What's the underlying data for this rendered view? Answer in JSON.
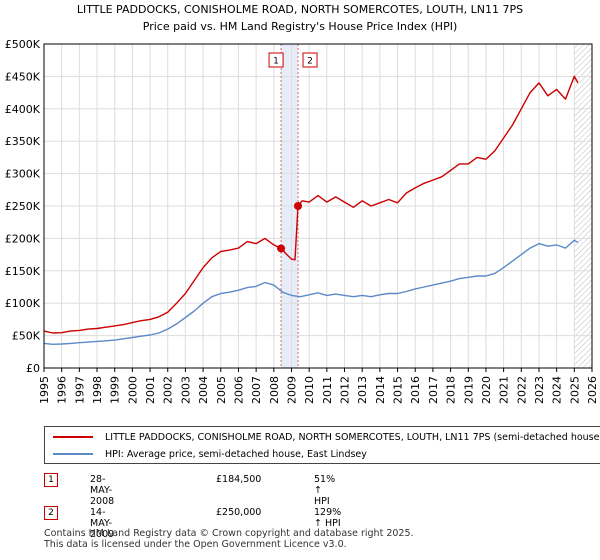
{
  "chart_data": {
    "type": "line",
    "title": "LITTLE PADDOCKS, CONISHOLME ROAD, NORTH SOMERCOTES, LOUTH, LN11 7PS",
    "subtitle": "Price paid vs. HM Land Registry's House Price Index (HPI)",
    "xlabel": "",
    "ylabel": "",
    "xlim": [
      1995,
      2026
    ],
    "ylim": [
      0,
      500000
    ],
    "x_ticks": [
      "1995",
      "1996",
      "1997",
      "1998",
      "1999",
      "2000",
      "2001",
      "2002",
      "2003",
      "2004",
      "2005",
      "2006",
      "2007",
      "2008",
      "2009",
      "2010",
      "2011",
      "2012",
      "2013",
      "2014",
      "2015",
      "2016",
      "2017",
      "2018",
      "2019",
      "2020",
      "2021",
      "2022",
      "2023",
      "2024",
      "2025",
      "2026"
    ],
    "y_ticks": [
      {
        "value": 0,
        "label": "£0"
      },
      {
        "value": 50000,
        "label": "£50K"
      },
      {
        "value": 100000,
        "label": "£100K"
      },
      {
        "value": 150000,
        "label": "£150K"
      },
      {
        "value": 200000,
        "label": "£200K"
      },
      {
        "value": 250000,
        "label": "£250K"
      },
      {
        "value": 300000,
        "label": "£300K"
      },
      {
        "value": 350000,
        "label": "£350K"
      },
      {
        "value": 400000,
        "label": "£400K"
      },
      {
        "value": 450000,
        "label": "£450K"
      },
      {
        "value": 500000,
        "label": "£500K"
      }
    ],
    "series": [
      {
        "name": "LITTLE PADDOCKS, CONISHOLME ROAD, NORTH SOMERCOTES, LOUTH, LN11 7PS (semi-detached house)",
        "color": "#cc0000",
        "points": [
          [
            1995.0,
            57000
          ],
          [
            1995.5,
            54000
          ],
          [
            1996.0,
            54500
          ],
          [
            1996.5,
            57000
          ],
          [
            1997.0,
            58000
          ],
          [
            1997.5,
            60000
          ],
          [
            1998.0,
            61000
          ],
          [
            1998.5,
            63000
          ],
          [
            1999.0,
            65000
          ],
          [
            1999.5,
            67000
          ],
          [
            2000.0,
            70000
          ],
          [
            2000.5,
            73000
          ],
          [
            2001.0,
            75000
          ],
          [
            2001.5,
            79000
          ],
          [
            2002.0,
            86000
          ],
          [
            2002.5,
            100000
          ],
          [
            2003.0,
            115000
          ],
          [
            2003.5,
            135000
          ],
          [
            2004.0,
            155000
          ],
          [
            2004.5,
            170000
          ],
          [
            2005.0,
            180000
          ],
          [
            2005.5,
            182000
          ],
          [
            2006.0,
            185000
          ],
          [
            2006.5,
            195000
          ],
          [
            2007.0,
            192000
          ],
          [
            2007.5,
            200000
          ],
          [
            2008.0,
            190000
          ],
          [
            2008.41,
            184500
          ],
          [
            2008.7,
            176000
          ],
          [
            2009.0,
            168000
          ],
          [
            2009.2,
            167000
          ],
          [
            2009.37,
            250000
          ],
          [
            2009.6,
            258000
          ],
          [
            2010.0,
            256000
          ],
          [
            2010.5,
            266000
          ],
          [
            2011.0,
            256000
          ],
          [
            2011.5,
            264000
          ],
          [
            2012.0,
            256000
          ],
          [
            2012.5,
            248000
          ],
          [
            2013.0,
            258000
          ],
          [
            2013.5,
            250000
          ],
          [
            2014.0,
            255000
          ],
          [
            2014.5,
            260000
          ],
          [
            2015.0,
            255000
          ],
          [
            2015.5,
            270000
          ],
          [
            2016.0,
            278000
          ],
          [
            2016.5,
            285000
          ],
          [
            2017.0,
            290000
          ],
          [
            2017.5,
            295000
          ],
          [
            2018.0,
            305000
          ],
          [
            2018.5,
            315000
          ],
          [
            2019.0,
            315000
          ],
          [
            2019.5,
            325000
          ],
          [
            2020.0,
            322000
          ],
          [
            2020.5,
            335000
          ],
          [
            2021.0,
            355000
          ],
          [
            2021.5,
            375000
          ],
          [
            2022.0,
            400000
          ],
          [
            2022.5,
            425000
          ],
          [
            2023.0,
            440000
          ],
          [
            2023.5,
            420000
          ],
          [
            2024.0,
            430000
          ],
          [
            2024.5,
            415000
          ],
          [
            2025.0,
            450000
          ],
          [
            2025.2,
            440000
          ]
        ]
      },
      {
        "name": "HPI: Average price, semi-detached house, East Lindsey",
        "color": "#5b8ac9",
        "points": [
          [
            1995.0,
            38000
          ],
          [
            1995.5,
            36500
          ],
          [
            1996.0,
            37000
          ],
          [
            1996.5,
            38000
          ],
          [
            1997.0,
            39000
          ],
          [
            1997.5,
            40000
          ],
          [
            1998.0,
            41000
          ],
          [
            1998.5,
            42000
          ],
          [
            1999.0,
            43000
          ],
          [
            1999.5,
            45000
          ],
          [
            2000.0,
            47000
          ],
          [
            2000.5,
            49000
          ],
          [
            2001.0,
            51000
          ],
          [
            2001.5,
            54000
          ],
          [
            2002.0,
            60000
          ],
          [
            2002.5,
            68000
          ],
          [
            2003.0,
            78000
          ],
          [
            2003.5,
            88000
          ],
          [
            2004.0,
            100000
          ],
          [
            2004.5,
            110000
          ],
          [
            2005.0,
            115000
          ],
          [
            2005.5,
            117000
          ],
          [
            2006.0,
            120000
          ],
          [
            2006.5,
            124000
          ],
          [
            2007.0,
            126000
          ],
          [
            2007.5,
            132000
          ],
          [
            2008.0,
            128000
          ],
          [
            2008.5,
            117000
          ],
          [
            2009.0,
            112000
          ],
          [
            2009.5,
            110000
          ],
          [
            2010.0,
            113000
          ],
          [
            2010.5,
            116000
          ],
          [
            2011.0,
            112000
          ],
          [
            2011.5,
            114000
          ],
          [
            2012.0,
            112000
          ],
          [
            2012.5,
            110000
          ],
          [
            2013.0,
            112000
          ],
          [
            2013.5,
            110000
          ],
          [
            2014.0,
            113000
          ],
          [
            2014.5,
            115000
          ],
          [
            2015.0,
            115000
          ],
          [
            2015.5,
            118000
          ],
          [
            2016.0,
            122000
          ],
          [
            2016.5,
            125000
          ],
          [
            2017.0,
            128000
          ],
          [
            2017.5,
            131000
          ],
          [
            2018.0,
            134000
          ],
          [
            2018.5,
            138000
          ],
          [
            2019.0,
            140000
          ],
          [
            2019.5,
            142000
          ],
          [
            2020.0,
            142000
          ],
          [
            2020.5,
            146000
          ],
          [
            2021.0,
            155000
          ],
          [
            2021.5,
            165000
          ],
          [
            2022.0,
            175000
          ],
          [
            2022.5,
            185000
          ],
          [
            2023.0,
            192000
          ],
          [
            2023.5,
            188000
          ],
          [
            2024.0,
            190000
          ],
          [
            2024.5,
            185000
          ],
          [
            2025.0,
            197000
          ],
          [
            2025.2,
            194000
          ]
        ]
      }
    ],
    "sales": [
      {
        "label": "1",
        "x": 2008.41,
        "y": 184500
      },
      {
        "label": "2",
        "x": 2009.37,
        "y": 250000
      }
    ],
    "shaded_region": [
      2008.41,
      2009.37
    ],
    "future_hatch_start": 2025.0
  },
  "legend": [
    {
      "label": "LITTLE PADDOCKS, CONISHOLME ROAD, NORTH SOMERCOTES, LOUTH, LN11 7PS (semi-detached house)",
      "color": "#cc0000"
    },
    {
      "label": "HPI: Average price, semi-detached house, East Lindsey",
      "color": "#5b8ac9"
    }
  ],
  "sales_table": [
    {
      "num": "1",
      "date": "28-MAY-2008",
      "price": "£184,500",
      "hpi": "51% ↑ HPI"
    },
    {
      "num": "2",
      "date": "14-MAY-2009",
      "price": "£250,000",
      "hpi": "129% ↑ HPI"
    }
  ],
  "footer": {
    "line1": "Contains HM Land Registry data © Crown copyright and database right 2025.",
    "line2": "This data is licensed under the Open Government Licence v3.0."
  }
}
